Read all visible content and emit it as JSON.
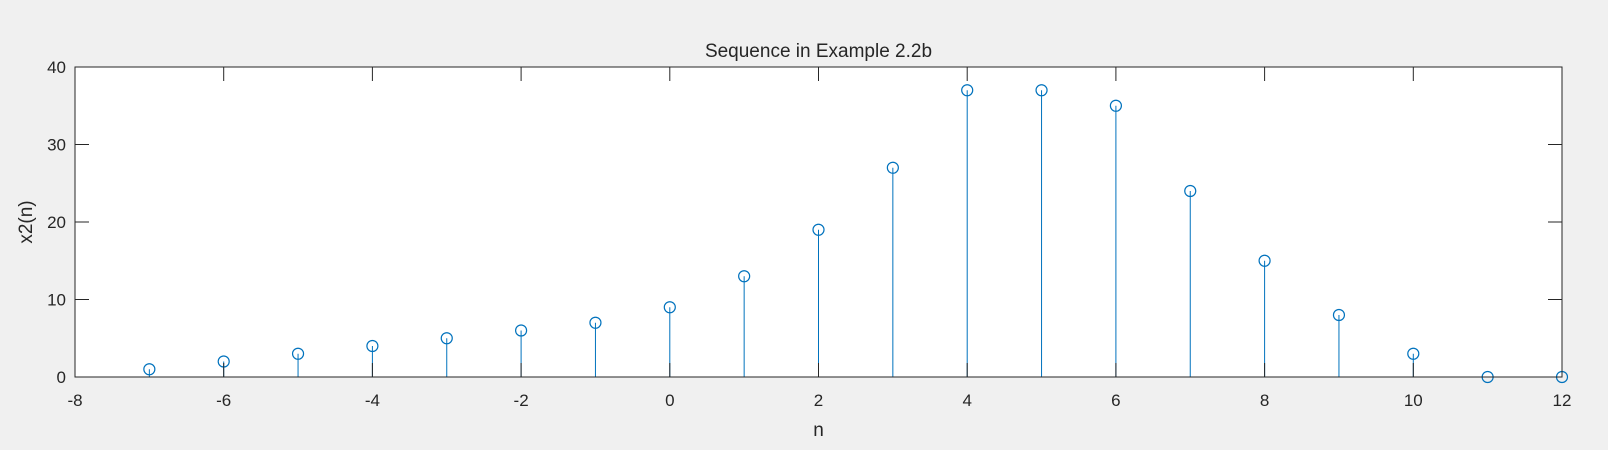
{
  "chart_data": {
    "type": "stem",
    "title": "Sequence in Example 2.2b",
    "xlabel": "n",
    "ylabel": "x2(n)",
    "xlim": [
      -8,
      12
    ],
    "ylim": [
      0,
      40
    ],
    "xticks": [
      -8,
      -6,
      -4,
      -2,
      0,
      2,
      4,
      6,
      8,
      10,
      12
    ],
    "yticks": [
      0,
      10,
      20,
      30,
      40
    ],
    "xtick_labels": [
      "-8",
      "-6",
      "-4",
      "-2",
      "0",
      "2",
      "4",
      "6",
      "8",
      "10",
      "12"
    ],
    "ytick_labels": [
      "0",
      "10",
      "20",
      "30",
      "40"
    ],
    "grid": false,
    "box": true,
    "colors": {
      "series": "#0072bd",
      "axes": "#262626",
      "plot_background": "#ffffff",
      "figure_background": "#f0f0f0"
    },
    "x": [
      -7,
      -6,
      -5,
      -4,
      -3,
      -2,
      -1,
      0,
      1,
      2,
      3,
      4,
      5,
      6,
      7,
      8,
      9,
      10,
      11,
      12
    ],
    "y": [
      1,
      2,
      3,
      4,
      5,
      6,
      7,
      9,
      13,
      19,
      27,
      37,
      37,
      35,
      24,
      15,
      8,
      3,
      0,
      0
    ]
  }
}
